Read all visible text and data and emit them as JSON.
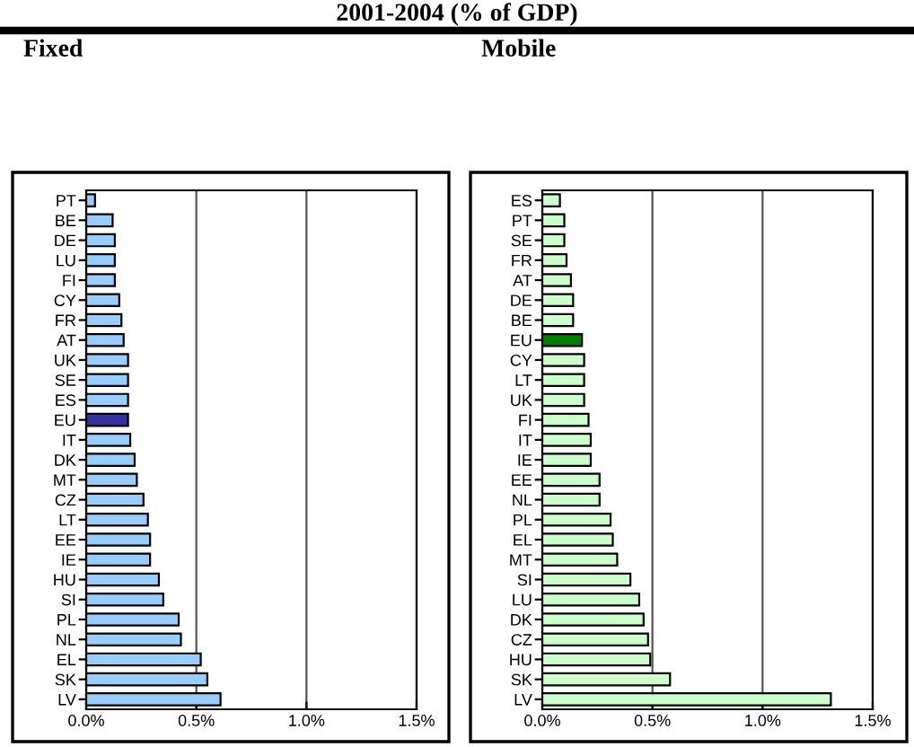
{
  "chart_data": [
    {
      "type": "bar",
      "orientation": "horizontal",
      "title": "Fixed",
      "annotations": [
        "2001-2004 (% of GDP)"
      ],
      "categories": [
        "PT",
        "BE",
        "DE",
        "LU",
        "FI",
        "CY",
        "FR",
        "AT",
        "UK",
        "SE",
        "ES",
        "EU",
        "IT",
        "DK",
        "MT",
        "CZ",
        "LT",
        "EE",
        "IE",
        "HU",
        "SI",
        "PL",
        "NL",
        "EL",
        "SK",
        "LV"
      ],
      "values": [
        0.04,
        0.12,
        0.13,
        0.13,
        0.13,
        0.15,
        0.16,
        0.17,
        0.19,
        0.19,
        0.19,
        0.19,
        0.2,
        0.22,
        0.23,
        0.26,
        0.28,
        0.29,
        0.29,
        0.33,
        0.35,
        0.42,
        0.43,
        0.52,
        0.55,
        0.61
      ],
      "colors": [
        "#99ccff",
        "#99ccff",
        "#99ccff",
        "#99ccff",
        "#99ccff",
        "#99ccff",
        "#99ccff",
        "#99ccff",
        "#99ccff",
        "#99ccff",
        "#99ccff",
        "#333399",
        "#99ccff",
        "#99ccff",
        "#99ccff",
        "#99ccff",
        "#99ccff",
        "#99ccff",
        "#99ccff",
        "#99ccff",
        "#99ccff",
        "#99ccff",
        "#99ccff",
        "#99ccff",
        "#99ccff",
        "#99ccff"
      ],
      "xlim": [
        0,
        1.5
      ],
      "xticks": [
        {
          "value": 0,
          "label": "0.0%"
        },
        {
          "value": 0.5,
          "label": "0.5%"
        },
        {
          "value": 1.0,
          "label": "1.0%"
        },
        {
          "value": 1.5,
          "label": "1.5%"
        }
      ],
      "grid": "x"
    },
    {
      "type": "bar",
      "orientation": "horizontal",
      "title": "Mobile",
      "categories": [
        "ES",
        "PT",
        "SE",
        "FR",
        "AT",
        "DE",
        "BE",
        "EU",
        "CY",
        "LT",
        "UK",
        "FI",
        "IT",
        "IE",
        "EE",
        "NL",
        "PL",
        "EL",
        "MT",
        "SI",
        "LU",
        "DK",
        "CZ",
        "HU",
        "SK",
        "LV"
      ],
      "values": [
        0.08,
        0.1,
        0.1,
        0.11,
        0.13,
        0.14,
        0.14,
        0.18,
        0.19,
        0.19,
        0.19,
        0.21,
        0.22,
        0.22,
        0.26,
        0.26,
        0.31,
        0.32,
        0.34,
        0.4,
        0.44,
        0.46,
        0.48,
        0.49,
        0.58,
        1.31
      ],
      "colors": [
        "#ccffcc",
        "#ccffcc",
        "#ccffcc",
        "#ccffcc",
        "#ccffcc",
        "#ccffcc",
        "#ccffcc",
        "#008000",
        "#ccffcc",
        "#ccffcc",
        "#ccffcc",
        "#ccffcc",
        "#ccffcc",
        "#ccffcc",
        "#ccffcc",
        "#ccffcc",
        "#ccffcc",
        "#ccffcc",
        "#ccffcc",
        "#ccffcc",
        "#ccffcc",
        "#ccffcc",
        "#ccffcc",
        "#ccffcc",
        "#ccffcc",
        "#ccffcc"
      ],
      "xlim": [
        0,
        1.5
      ],
      "xticks": [
        {
          "value": 0,
          "label": "0.0%"
        },
        {
          "value": 0.5,
          "label": "0.5%"
        },
        {
          "value": 1.0,
          "label": "1.0%"
        },
        {
          "value": 1.5,
          "label": "1.5%"
        }
      ],
      "grid": "x"
    }
  ]
}
